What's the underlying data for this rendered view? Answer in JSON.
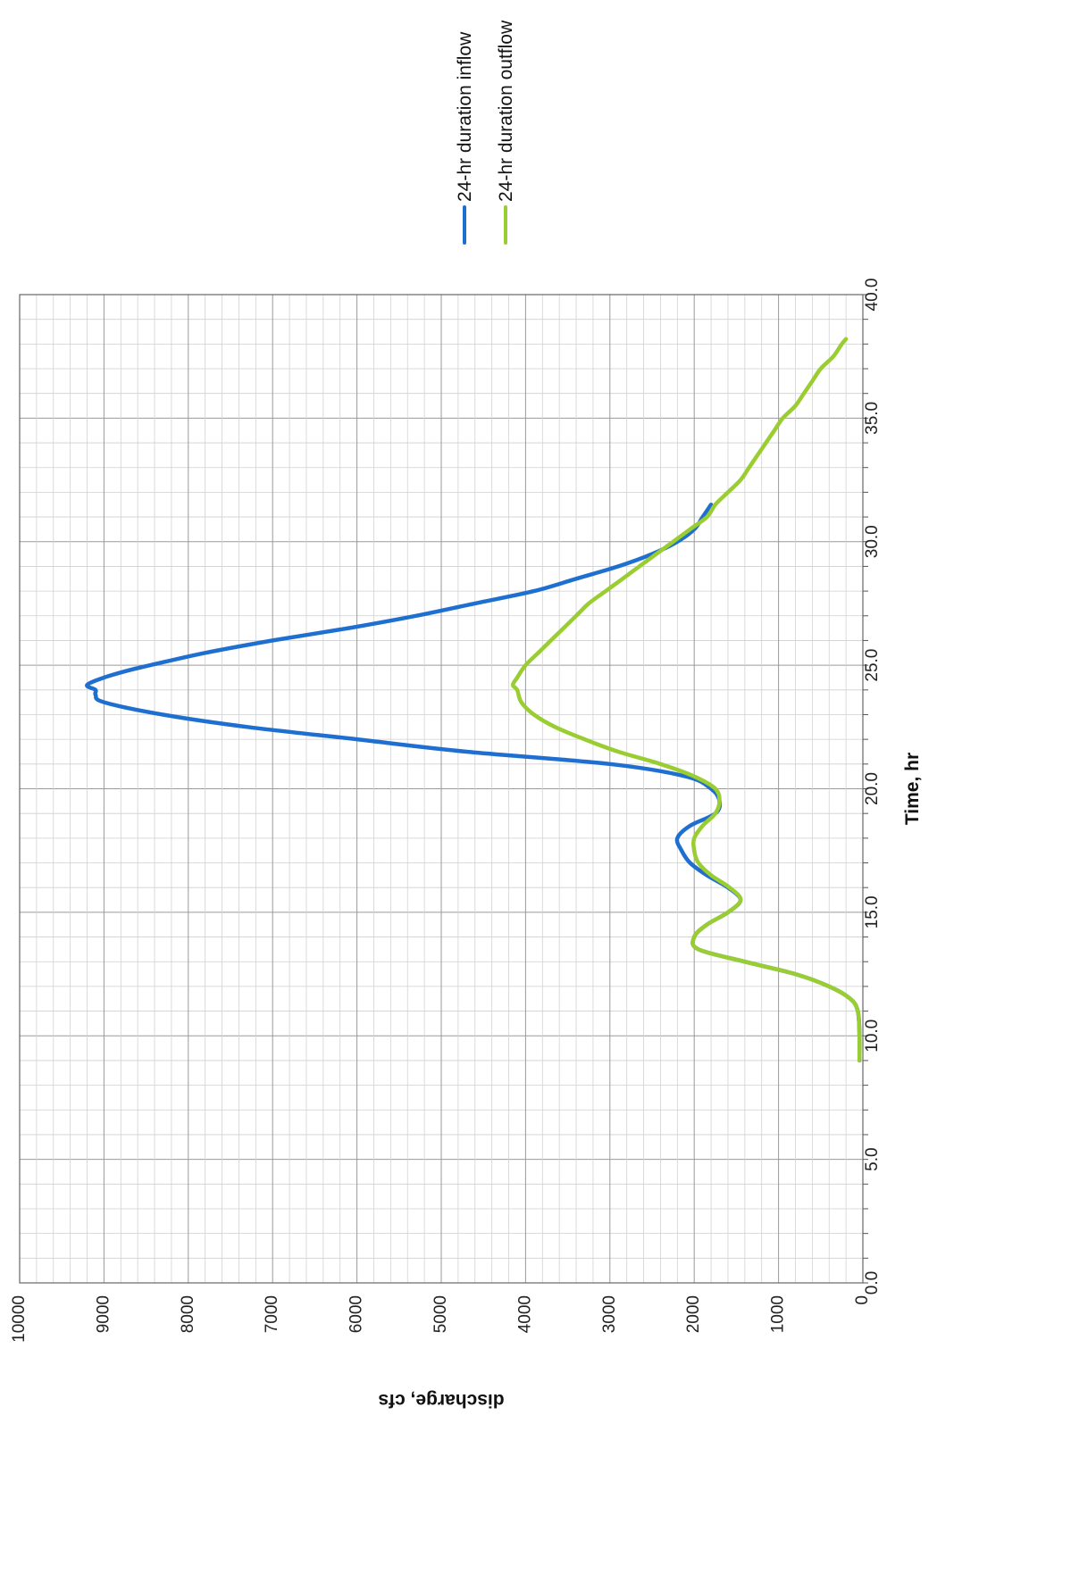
{
  "chart_data": {
    "type": "line",
    "xlabel": "Time, hr",
    "ylabel": "discharge, cfs",
    "xlim": [
      0,
      40
    ],
    "ylim": [
      0,
      10000
    ],
    "x_ticks": [
      "0.0",
      "5.0",
      "10.0",
      "15.0",
      "20.0",
      "25.0",
      "30.0",
      "35.0",
      "40.0"
    ],
    "y_ticks": [
      "0",
      "1000",
      "2000",
      "3000",
      "4000",
      "5000",
      "6000",
      "7000",
      "8000",
      "9000",
      "10000"
    ],
    "grid": true,
    "legend_position": "right",
    "series": [
      {
        "name": "24-hr duration inflow",
        "color": "#1f6fd0",
        "x": [
          9.0,
          10.0,
          11.0,
          11.5,
          12.0,
          12.5,
          13.0,
          13.5,
          14.0,
          14.5,
          15.0,
          15.5,
          16.0,
          16.5,
          17.0,
          17.5,
          18.0,
          18.5,
          19.0,
          19.5,
          20.0,
          20.5,
          21.0,
          21.5,
          22.0,
          22.5,
          23.0,
          23.5,
          23.8,
          24.0,
          24.2,
          24.5,
          24.8,
          25.0,
          25.5,
          26.0,
          26.5,
          27.0,
          27.5,
          28.0,
          28.5,
          29.0,
          29.5,
          30.0,
          30.5,
          31.0,
          31.5
        ],
        "values": [
          40,
          40,
          60,
          150,
          400,
          800,
          1400,
          1950,
          2000,
          1850,
          1600,
          1450,
          1600,
          1850,
          2050,
          2150,
          2200,
          2050,
          1750,
          1700,
          1800,
          2100,
          3000,
          4700,
          6000,
          7300,
          8300,
          9000,
          9100,
          9100,
          9200,
          9000,
          8700,
          8450,
          7800,
          7000,
          6100,
          5300,
          4600,
          3900,
          3400,
          2900,
          2500,
          2200,
          2000,
          1900,
          1800
        ]
      },
      {
        "name": "24-hr duration outflow",
        "color": "#9acd32",
        "x": [
          9.0,
          10.0,
          11.0,
          11.5,
          12.0,
          12.5,
          13.0,
          13.5,
          14.0,
          14.5,
          15.0,
          15.5,
          16.0,
          16.5,
          17.0,
          17.5,
          18.0,
          18.5,
          19.0,
          19.5,
          20.0,
          20.5,
          21.0,
          21.5,
          22.0,
          22.5,
          23.0,
          23.5,
          24.0,
          24.2,
          24.5,
          25.0,
          25.5,
          26.0,
          26.5,
          27.0,
          27.5,
          28.0,
          28.5,
          29.0,
          29.5,
          30.0,
          30.5,
          31.0,
          31.5,
          32.0,
          32.5,
          33.0,
          33.5,
          34.0,
          34.5,
          35.0,
          35.5,
          36.0,
          36.5,
          37.0,
          37.5,
          38.0,
          38.2
        ],
        "values": [
          40,
          40,
          60,
          150,
          400,
          800,
          1400,
          1950,
          2000,
          1850,
          1600,
          1450,
          1580,
          1800,
          1950,
          2000,
          2000,
          1900,
          1750,
          1700,
          1750,
          2000,
          2400,
          2900,
          3300,
          3650,
          3900,
          4050,
          4100,
          4150,
          4100,
          4000,
          3850,
          3700,
          3550,
          3400,
          3250,
          3050,
          2850,
          2650,
          2450,
          2250,
          2050,
          1850,
          1750,
          1600,
          1450,
          1350,
          1250,
          1150,
          1050,
          950,
          800,
          700,
          600,
          500,
          350,
          250,
          200
        ]
      }
    ]
  }
}
